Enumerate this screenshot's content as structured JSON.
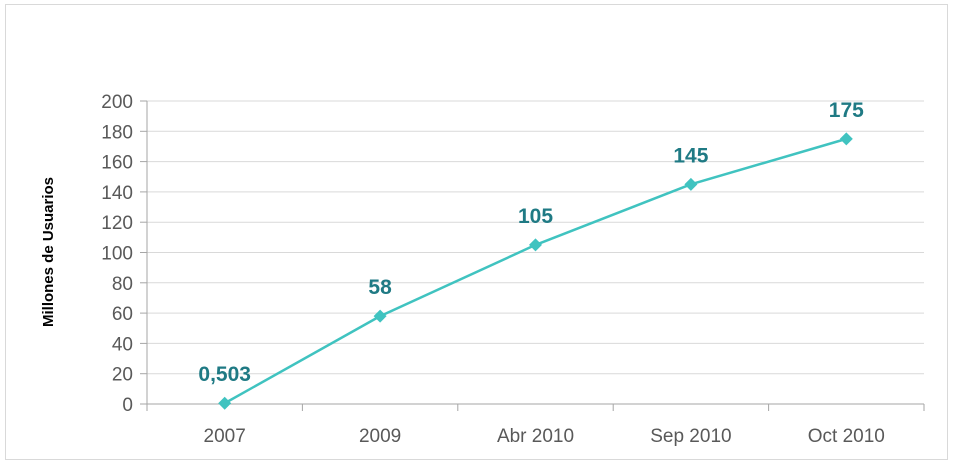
{
  "chart_data": {
    "type": "line",
    "categories": [
      "2007",
      "2009",
      "Abr 2010",
      "Sep 2010",
      "Oct 2010"
    ],
    "series": [
      {
        "values": [
          0.503,
          58,
          105,
          145,
          175
        ]
      }
    ],
    "data_labels": [
      "0,503",
      "58",
      "105",
      "145",
      "175"
    ],
    "y_ticks": [
      "0",
      "20",
      "40",
      "60",
      "80",
      "100",
      "120",
      "140",
      "160",
      "180",
      "200"
    ],
    "ylabel": "Millones de Usuarios",
    "xlabel": "",
    "title": "",
    "ylim": [
      0,
      200
    ],
    "grid": true,
    "legend": "none",
    "line_color": "#40c3c0",
    "label_color": "#1f7a84",
    "marker": "diamond"
  }
}
